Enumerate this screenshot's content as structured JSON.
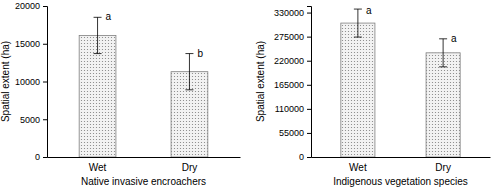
{
  "chart_data": [
    {
      "type": "bar",
      "xlabel": "Native invasive encroachers",
      "ylabel": "Spatial extent (ha)",
      "categories": [
        "Wet",
        "Dry"
      ],
      "values": [
        16100,
        11300
      ],
      "errors": [
        2400,
        2400
      ],
      "annotations": [
        "a",
        "b"
      ],
      "color": "#7f7f7f",
      "ylim": [
        0,
        20000
      ],
      "yticks": [
        0,
        5000,
        10000,
        15000,
        20000
      ]
    },
    {
      "type": "bar",
      "xlabel": "Indigenous vegetation species",
      "ylabel": "Spatial extent (ha)",
      "categories": [
        "Wet",
        "Dry"
      ],
      "values": [
        306000,
        238000
      ],
      "errors": [
        32000,
        32000
      ],
      "annotations": [
        "a",
        "a"
      ],
      "color": "#7f7f7f",
      "ylim": [
        0,
        345000
      ],
      "yticks": [
        0,
        55000,
        110000,
        165000,
        220000,
        275000,
        330000
      ]
    }
  ]
}
